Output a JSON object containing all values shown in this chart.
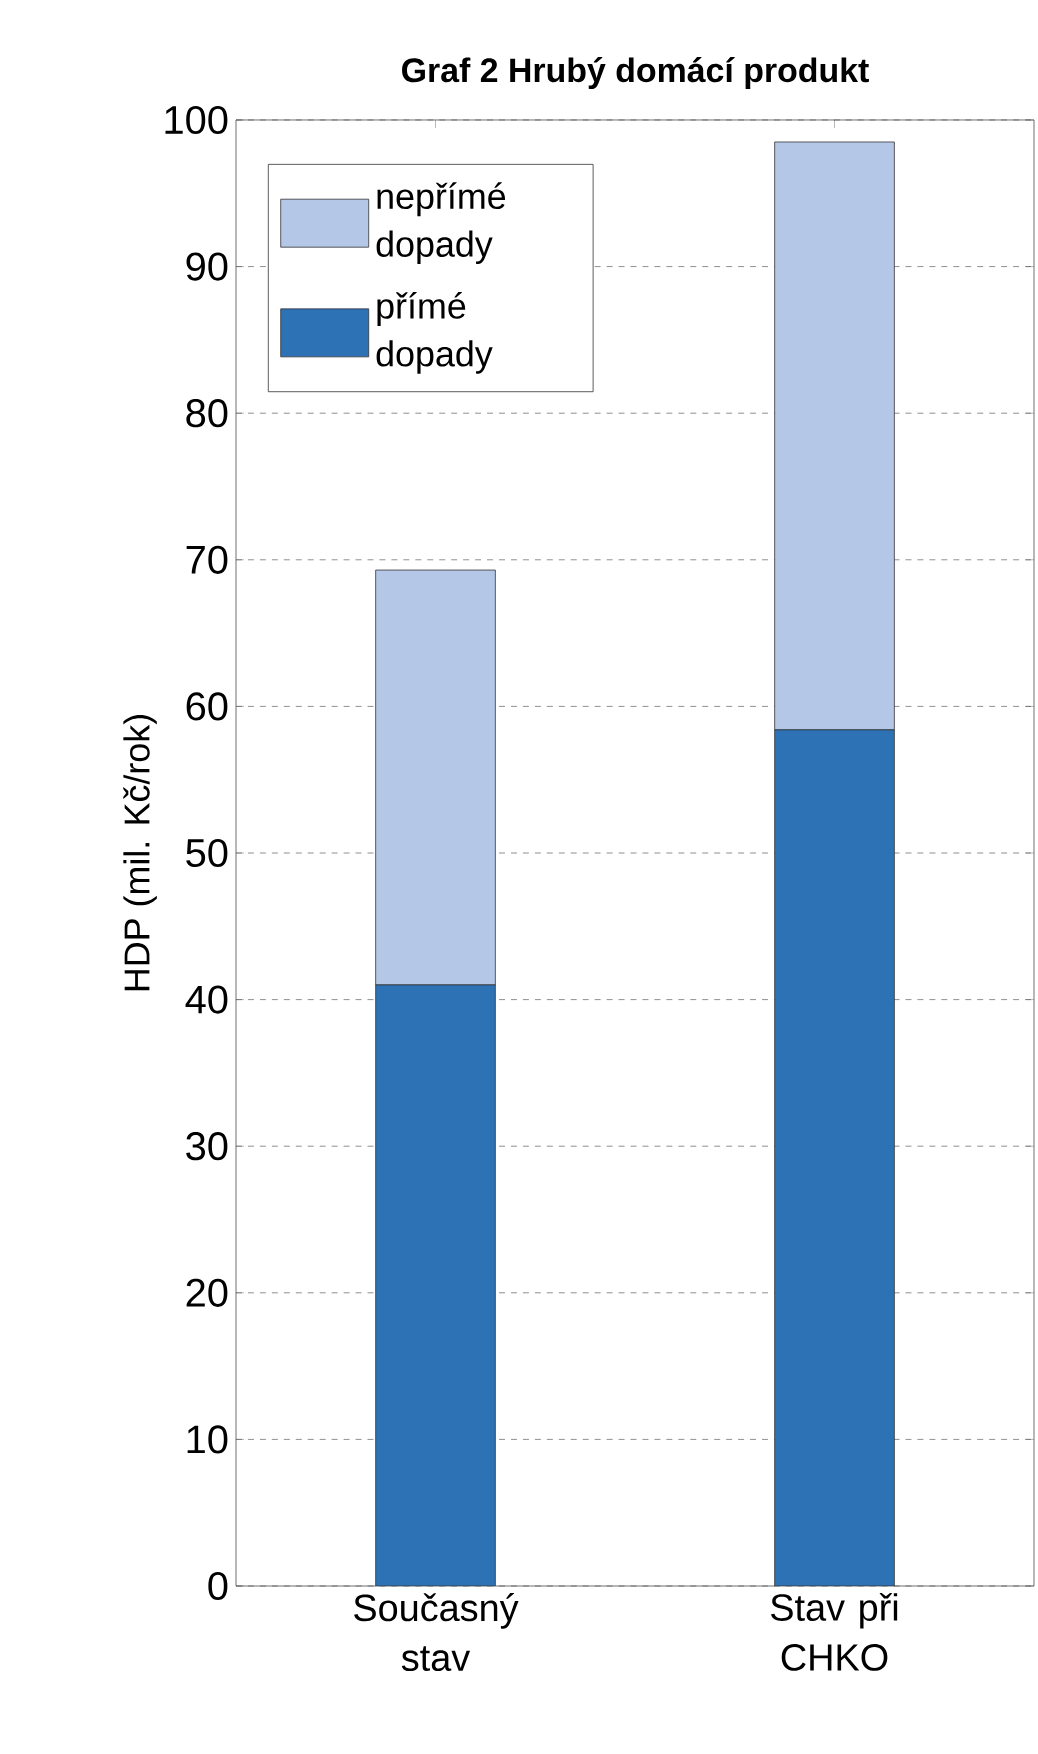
{
  "chart_data": {
    "type": "bar",
    "title": "Graf 2 Hrubý domácí produkt",
    "ylabel": "HDP (mil. Kč/rok)",
    "categories": [
      "Současný stav",
      "Stav při CHKO"
    ],
    "stacked": true,
    "series": [
      {
        "name": "přímé dopady",
        "color": "#2e72b6",
        "values": [
          41.0,
          58.4
        ]
      },
      {
        "name": "nepřímé dopady",
        "color": "#b4c7e7",
        "values": [
          28.3,
          40.1
        ]
      }
    ],
    "ylim": [
      0,
      100
    ],
    "yticks": [
      0,
      10,
      20,
      30,
      40,
      50,
      60,
      70,
      80,
      90,
      100
    ],
    "grid": "y",
    "legend": "top left"
  }
}
